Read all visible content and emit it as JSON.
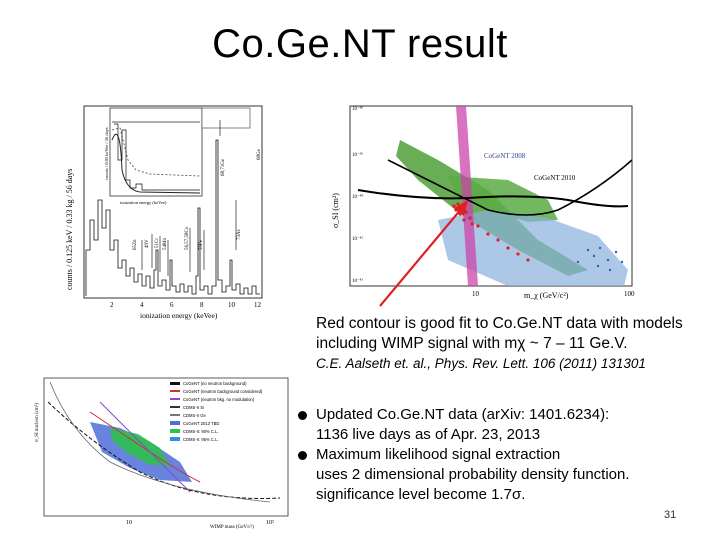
{
  "slide": {
    "title": "Co.Ge.NT result",
    "caption_line1": "Red contour is good fit to Co.Ge.NT data with models",
    "caption_line2": "including WIMP signal with mχ ~ 7 – 11 Ge.V.",
    "citation": "C.E. Aalseth et. al., Phys. Rev. Lett. 106 (2011) 131301",
    "bullets": [
      {
        "line1": "Updated Co.Ge.NT data (arXiv: 1401.6234):",
        "line2": "1136 live days as of Apr. 23, 2013"
      },
      {
        "line1": "Maximum likelihood signal extraction",
        "line2": "uses 2 dimensional probability density function.",
        "line3": "significance level become 1.7σ."
      }
    ],
    "page_number": "31"
  },
  "fig_spectrum": {
    "ylabel": "counts / 0.125 keV / 0.33 kg / 56 days",
    "xlabel": "ionization energy (keVee)",
    "inset_xlabel": "ionization energy (keVee)",
    "inset_ylabel": "counts / 0.05 keVee / 56 days",
    "x_ticks": [
      "2",
      "4",
      "6",
      "8",
      "10",
      "12"
    ],
    "line_labels": [
      "65Zn",
      "68Ge",
      "55Fe",
      "49V",
      "51Cr",
      "54Mn",
      "56,57,58Co",
      "73As",
      "68,71Ge",
      "65Zn (L)"
    ],
    "colors": {
      "trace": "#222222",
      "bg": "#ffffff"
    }
  },
  "fig_exclusion_2011": {
    "ylabel": "σ_SI (cm²)",
    "xlabel": "m_χ (GeV/c²)",
    "y_ticks": [
      "10⁻³⁸",
      "10⁻³⁹",
      "10⁻⁴⁰",
      "10⁻⁴¹",
      "10⁻⁴²"
    ],
    "x_ticks": [
      "10",
      "100"
    ],
    "labels": {
      "cogent2008": "CoGeNT 2008",
      "cogent2010": "CoGeNT 2010"
    },
    "colors": {
      "green": "#4f9f3a",
      "red": "#e02020",
      "blue": "#2f5fb0",
      "magenta": "#cc44aa",
      "arrow": "#e02020"
    }
  },
  "fig_exclusion_2014": {
    "ylabel": "σ_SI nucleon (cm²)",
    "xlabel": "WIMP mass (GeV/c²)",
    "x_ticks": [
      "10",
      "10²"
    ],
    "legend": [
      "CoGeNT (no neutron background)",
      "CoGeNT (neutron background considered)",
      "CoGeNT (neutron bkg. no modulation)",
      "CDMS-II Si",
      "CDMS-II Ge",
      "CoGeNT 2013 TBD",
      "CDMS-II: 90% C.L.",
      "CDMS-II: 95% C.L."
    ],
    "colors": {
      "green": "#2fbf4f",
      "blue": "#4f6fd8",
      "purple": "#8a4ad0",
      "red": "#d03030"
    }
  }
}
